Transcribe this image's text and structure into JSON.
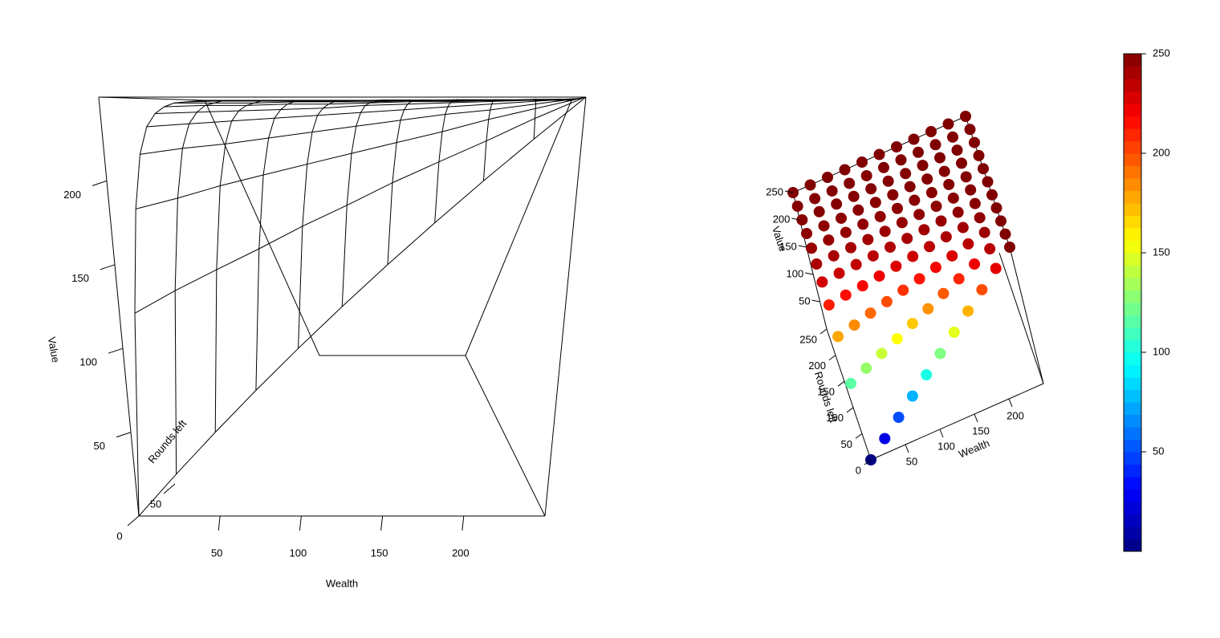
{
  "chart_data": [
    {
      "type": "surface",
      "xlabel": "Wealth",
      "ylabel": "Rounds left",
      "zlabel": "Value",
      "x": [
        0,
        25,
        50,
        75,
        100,
        125,
        150,
        175,
        200,
        225,
        250
      ],
      "y": [
        0,
        25,
        50,
        75,
        100,
        125,
        150,
        175,
        200,
        225,
        250
      ],
      "z": [
        [
          0,
          25,
          50,
          75,
          100,
          125,
          150,
          175,
          200,
          225,
          250
        ],
        [
          116,
          130,
          143,
          156,
          170,
          183,
          197,
          210,
          223,
          237,
          250
        ],
        [
          178,
          185,
          193,
          200,
          207,
          214,
          221,
          228,
          236,
          243,
          250
        ],
        [
          212,
          216,
          219,
          223,
          227,
          231,
          235,
          239,
          242,
          246,
          250
        ],
        [
          230,
          232,
          234,
          236,
          238,
          240,
          242,
          244,
          246,
          248,
          250
        ],
        [
          239,
          240,
          241,
          242,
          243,
          245,
          246,
          247,
          248,
          249,
          250
        ],
        [
          244,
          245,
          245,
          246,
          246,
          247,
          248,
          248,
          249,
          249,
          250
        ],
        [
          247,
          247,
          247,
          248,
          248,
          248,
          249,
          249,
          249,
          250,
          250
        ],
        [
          248,
          249,
          249,
          249,
          249,
          249,
          249,
          250,
          250,
          250,
          250
        ],
        [
          249,
          249,
          249,
          249,
          249,
          250,
          250,
          250,
          250,
          250,
          250
        ],
        [
          250,
          250,
          250,
          250,
          250,
          250,
          250,
          250,
          250,
          250,
          250
        ]
      ],
      "xlim": [
        0,
        250
      ],
      "ylim": [
        0,
        250
      ],
      "zlim": [
        0,
        250
      ],
      "xticks": [
        50,
        100,
        150,
        200
      ],
      "yticks": [
        0,
        50
      ],
      "zticks": [
        50,
        100,
        150,
        200
      ],
      "color": "#000000"
    },
    {
      "type": "scatter3d",
      "xlabel": "Wealth",
      "ylabel": "Rounds left",
      "zlabel": "Value",
      "x": [
        0,
        25,
        50,
        75,
        100,
        125,
        150,
        175,
        200,
        225,
        250
      ],
      "y": [
        0,
        25,
        50,
        75,
        100,
        125,
        150,
        175,
        200,
        225,
        250
      ],
      "z": [
        [
          0,
          25,
          50,
          75,
          100,
          125,
          150,
          175,
          200,
          225,
          250
        ],
        [
          116,
          130,
          143,
          156,
          170,
          183,
          197,
          210,
          223,
          237,
          250
        ],
        [
          178,
          185,
          193,
          200,
          207,
          214,
          221,
          228,
          236,
          243,
          250
        ],
        [
          212,
          216,
          219,
          223,
          227,
          231,
          235,
          239,
          242,
          246,
          250
        ],
        [
          230,
          232,
          234,
          236,
          238,
          240,
          242,
          244,
          246,
          248,
          250
        ],
        [
          239,
          240,
          241,
          242,
          243,
          245,
          246,
          247,
          248,
          249,
          250
        ],
        [
          244,
          245,
          245,
          246,
          246,
          247,
          248,
          248,
          249,
          249,
          250
        ],
        [
          247,
          247,
          247,
          248,
          248,
          248,
          249,
          249,
          249,
          250,
          250
        ],
        [
          248,
          249,
          249,
          249,
          249,
          249,
          249,
          250,
          250,
          250,
          250
        ],
        [
          249,
          249,
          249,
          249,
          249,
          250,
          250,
          250,
          250,
          250,
          250
        ],
        [
          250,
          250,
          250,
          250,
          250,
          250,
          250,
          250,
          250,
          250,
          250
        ]
      ],
      "xlim": [
        0,
        250
      ],
      "ylim": [
        0,
        250
      ],
      "zlim": [
        0,
        250
      ],
      "xticks": [
        50,
        100,
        150,
        200
      ],
      "yticks": [
        0,
        50,
        100,
        150,
        200,
        250
      ],
      "zticks": [
        50,
        100,
        150,
        200,
        250
      ],
      "colormap": "jet",
      "clim": [
        0,
        250
      ],
      "colorbar_ticks": [
        50,
        100,
        150,
        200,
        250
      ]
    }
  ]
}
